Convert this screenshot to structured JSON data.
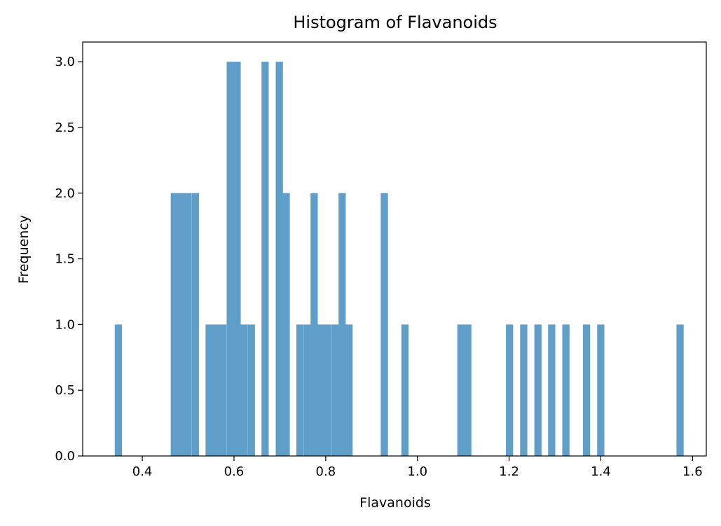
{
  "chart_data": {
    "type": "bar",
    "title": "Histogram of Flavanoids",
    "xlabel": "Flavanoids",
    "ylabel": "Frequency",
    "xlim": [
      0.27,
      1.63
    ],
    "ylim": [
      0,
      3.15
    ],
    "xticks": [
      0.4,
      0.6,
      0.8,
      1.0,
      1.2,
      1.4,
      1.6
    ],
    "xtick_labels": [
      "0.4",
      "0.6",
      "0.8",
      "1.0",
      "1.2",
      "1.4",
      "1.6"
    ],
    "yticks": [
      0.0,
      0.5,
      1.0,
      1.5,
      2.0,
      2.5,
      3.0
    ],
    "ytick_labels": [
      "0.0",
      "0.5",
      "1.0",
      "1.5",
      "2.0",
      "2.5",
      "3.0"
    ],
    "grid": false,
    "color": "#5f9ec9",
    "bin_width": 0.01525,
    "bins": [
      {
        "x0": 0.34,
        "count": 1
      },
      {
        "x0": 0.462,
        "count": 2
      },
      {
        "x0": 0.477,
        "count": 2
      },
      {
        "x0": 0.492,
        "count": 2
      },
      {
        "x0": 0.508,
        "count": 2
      },
      {
        "x0": 0.538,
        "count": 1
      },
      {
        "x0": 0.553,
        "count": 1
      },
      {
        "x0": 0.568,
        "count": 1
      },
      {
        "x0": 0.584,
        "count": 3
      },
      {
        "x0": 0.599,
        "count": 3
      },
      {
        "x0": 0.614,
        "count": 1
      },
      {
        "x0": 0.63,
        "count": 1
      },
      {
        "x0": 0.66,
        "count": 3
      },
      {
        "x0": 0.691,
        "count": 3
      },
      {
        "x0": 0.706,
        "count": 2
      },
      {
        "x0": 0.736,
        "count": 1
      },
      {
        "x0": 0.752,
        "count": 1
      },
      {
        "x0": 0.767,
        "count": 2
      },
      {
        "x0": 0.782,
        "count": 1
      },
      {
        "x0": 0.797,
        "count": 1
      },
      {
        "x0": 0.813,
        "count": 1
      },
      {
        "x0": 0.828,
        "count": 2
      },
      {
        "x0": 0.843,
        "count": 1
      },
      {
        "x0": 0.92,
        "count": 2
      },
      {
        "x0": 0.965,
        "count": 1
      },
      {
        "x0": 1.087,
        "count": 1
      },
      {
        "x0": 1.102,
        "count": 1
      },
      {
        "x0": 1.193,
        "count": 1
      },
      {
        "x0": 1.224,
        "count": 1
      },
      {
        "x0": 1.255,
        "count": 1
      },
      {
        "x0": 1.285,
        "count": 1
      },
      {
        "x0": 1.316,
        "count": 1
      },
      {
        "x0": 1.361,
        "count": 1
      },
      {
        "x0": 1.392,
        "count": 1
      },
      {
        "x0": 1.565,
        "count": 1
      }
    ]
  }
}
